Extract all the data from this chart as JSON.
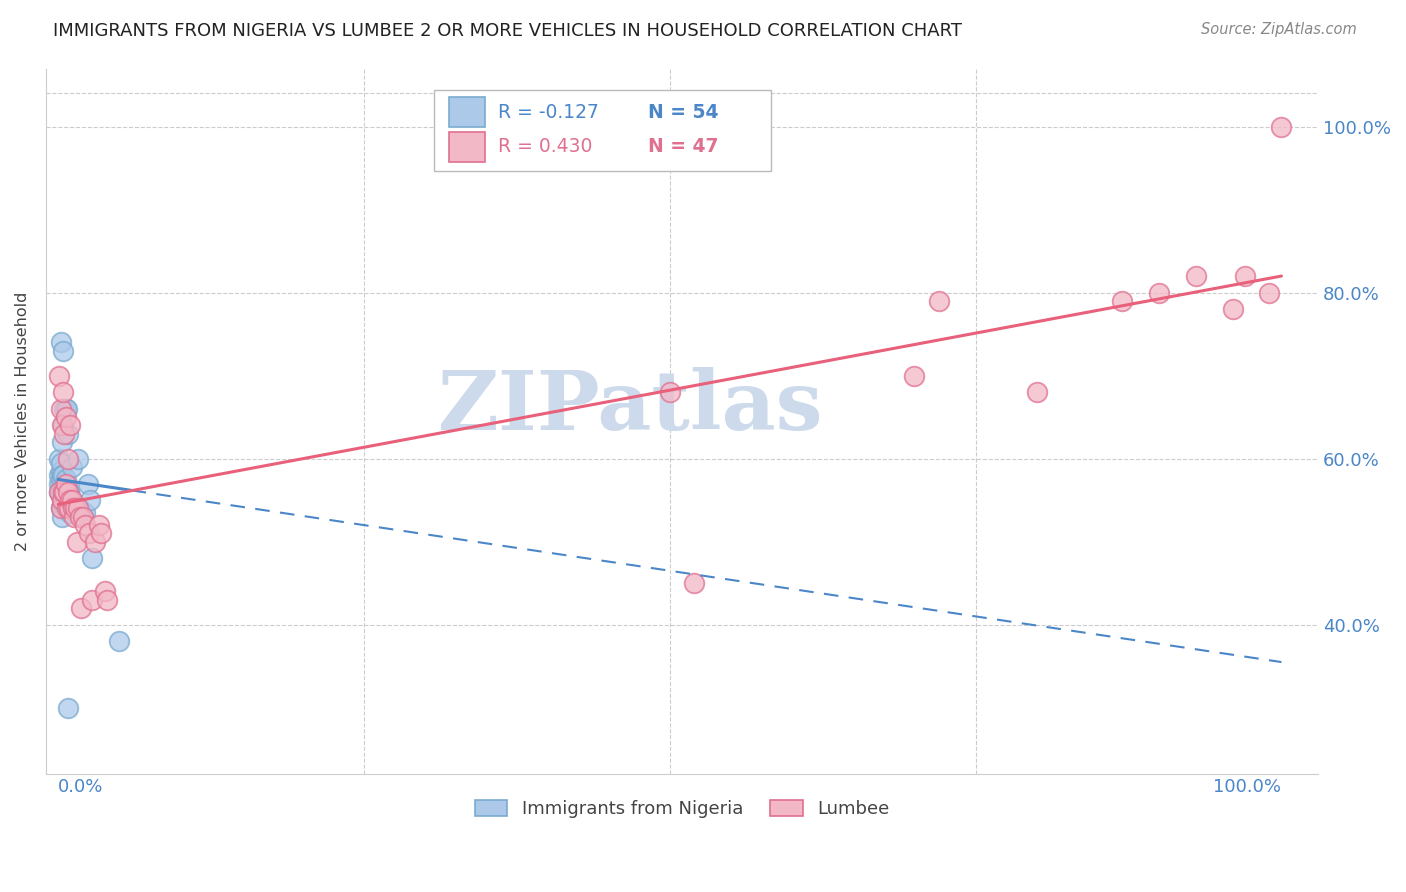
{
  "title": "IMMIGRANTS FROM NIGERIA VS LUMBEE 2 OR MORE VEHICLES IN HOUSEHOLD CORRELATION CHART",
  "source": "Source: ZipAtlas.com",
  "ylabel": "2 or more Vehicles in Household",
  "ytick_labels": [
    "40.0%",
    "60.0%",
    "80.0%",
    "100.0%"
  ],
  "ytick_values": [
    0.4,
    0.6,
    0.8,
    1.0
  ],
  "blue_face": "#adc9ea",
  "blue_edge": "#7aaad0",
  "pink_face": "#f2b8c6",
  "pink_edge": "#e07090",
  "blue_line": "#4a86c8",
  "pink_line": "#e8607a",
  "grid_color": "#cccccc",
  "watermark": "ZIPatlas",
  "watermark_color": "#ccdaec",
  "legend_R1": "R = -0.127",
  "legend_N1": "N = 54",
  "legend_R2": "R = 0.430",
  "legend_N2": "N = 47",
  "legend_label1": "Immigrants from Nigeria",
  "legend_label2": "Lumbee",
  "nigeria_x": [
    0.001,
    0.001,
    0.001,
    0.001,
    0.002,
    0.002,
    0.002,
    0.002,
    0.002,
    0.002,
    0.003,
    0.003,
    0.003,
    0.003,
    0.003,
    0.004,
    0.004,
    0.004,
    0.004,
    0.005,
    0.005,
    0.005,
    0.006,
    0.006,
    0.006,
    0.007,
    0.007,
    0.007,
    0.008,
    0.008,
    0.008,
    0.009,
    0.009,
    0.01,
    0.01,
    0.011,
    0.011,
    0.012,
    0.013,
    0.014,
    0.015,
    0.016,
    0.017,
    0.018,
    0.019,
    0.02,
    0.022,
    0.024,
    0.026,
    0.028,
    0.05,
    0.008,
    0.002,
    0.004
  ],
  "nigeria_y": [
    0.56,
    0.57,
    0.58,
    0.6,
    0.54,
    0.555,
    0.565,
    0.575,
    0.585,
    0.595,
    0.53,
    0.545,
    0.56,
    0.58,
    0.62,
    0.55,
    0.565,
    0.58,
    0.64,
    0.545,
    0.56,
    0.66,
    0.555,
    0.575,
    0.66,
    0.55,
    0.565,
    0.66,
    0.545,
    0.555,
    0.63,
    0.545,
    0.56,
    0.535,
    0.555,
    0.54,
    0.59,
    0.54,
    0.54,
    0.545,
    0.535,
    0.6,
    0.54,
    0.535,
    0.53,
    0.53,
    0.535,
    0.57,
    0.55,
    0.48,
    0.38,
    0.3,
    0.74,
    0.73
  ],
  "lumbee_x": [
    0.001,
    0.001,
    0.002,
    0.002,
    0.003,
    0.003,
    0.004,
    0.004,
    0.005,
    0.005,
    0.006,
    0.006,
    0.007,
    0.008,
    0.008,
    0.009,
    0.01,
    0.01,
    0.011,
    0.012,
    0.013,
    0.014,
    0.015,
    0.016,
    0.018,
    0.019,
    0.02,
    0.022,
    0.025,
    0.028,
    0.03,
    0.033,
    0.035,
    0.038,
    0.04,
    0.5,
    0.52,
    0.7,
    0.72,
    0.8,
    0.87,
    0.9,
    0.93,
    0.96,
    0.97,
    0.99,
    1.0
  ],
  "lumbee_y": [
    0.56,
    0.7,
    0.54,
    0.66,
    0.55,
    0.64,
    0.56,
    0.68,
    0.56,
    0.63,
    0.57,
    0.65,
    0.54,
    0.56,
    0.6,
    0.54,
    0.55,
    0.64,
    0.55,
    0.54,
    0.53,
    0.54,
    0.5,
    0.54,
    0.53,
    0.42,
    0.53,
    0.52,
    0.51,
    0.43,
    0.5,
    0.52,
    0.51,
    0.44,
    0.43,
    0.68,
    0.45,
    0.7,
    0.79,
    0.68,
    0.79,
    0.8,
    0.82,
    0.78,
    0.82,
    0.8,
    1.0
  ],
  "xlim_min": -0.01,
  "xlim_max": 1.03,
  "ylim_min": 0.22,
  "ylim_max": 1.07,
  "nigeria_line_x0": 0.0,
  "nigeria_line_x_solid_end": 0.06,
  "nigeria_line_x_dash_end": 1.0,
  "nigeria_line_y0": 0.575,
  "nigeria_line_slope": -0.22,
  "lumbee_line_x0": 0.0,
  "lumbee_line_x1": 1.0,
  "lumbee_line_y0": 0.545,
  "lumbee_line_y1": 0.82
}
